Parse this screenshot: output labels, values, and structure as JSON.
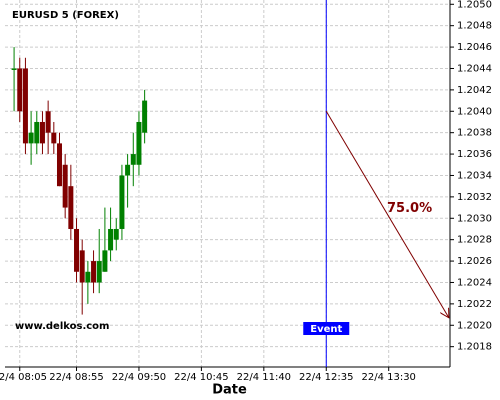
{
  "chart_data": {
    "type": "candlestick",
    "title": "EURUSD 5 (FOREX)",
    "x_label": "Date",
    "watermark": "www.delkos.com",
    "x": [
      0,
      5,
      10,
      15,
      20,
      25,
      30,
      35,
      40,
      45,
      50,
      55,
      60,
      65,
      70,
      75,
      80,
      85,
      90,
      95,
      100,
      105,
      110,
      115
    ],
    "open": [
      1.2044,
      1.2044,
      1.2044,
      1.2037,
      1.2037,
      1.2039,
      1.204,
      1.2038,
      1.2037,
      1.2035,
      1.2033,
      1.2029,
      1.2027,
      1.2024,
      1.2026,
      1.2024,
      1.2025,
      1.2027,
      1.2028,
      1.2029,
      1.2034,
      1.2035,
      1.2035,
      1.2038
    ],
    "high": [
      1.2046,
      1.2045,
      1.2045,
      1.204,
      1.204,
      1.204,
      1.2041,
      1.2039,
      1.2038,
      1.2036,
      1.2035,
      1.203,
      1.2028,
      1.2026,
      1.2027,
      1.2029,
      1.2031,
      1.2031,
      1.203,
      1.2035,
      1.2036,
      1.2038,
      1.204,
      1.2042
    ],
    "low": [
      1.204,
      1.2039,
      1.2036,
      1.2035,
      1.2036,
      1.2036,
      1.2036,
      1.2036,
      1.2033,
      1.203,
      1.2028,
      1.2024,
      1.2021,
      1.2022,
      1.2023,
      1.2023,
      1.2025,
      1.2026,
      1.2027,
      1.2028,
      1.2031,
      1.2033,
      1.2034,
      1.2037
    ],
    "close": [
      1.2044,
      1.204,
      1.2037,
      1.2038,
      1.2039,
      1.2037,
      1.2038,
      1.2037,
      1.2033,
      1.2031,
      1.2029,
      1.2025,
      1.2024,
      1.2025,
      1.2024,
      1.2026,
      1.2027,
      1.2029,
      1.2029,
      1.2034,
      1.2035,
      1.2036,
      1.2039,
      1.2041
    ],
    "up_color": "#008000",
    "down_color": "#800000",
    "xlim": [
      -8,
      384
    ],
    "xticks": [
      {
        "value": 5,
        "label": "22/4 08:05"
      },
      {
        "value": 55,
        "label": "22/4 08:55"
      },
      {
        "value": 110,
        "label": "22/4 09:50"
      },
      {
        "value": 165,
        "label": "22/4 10:45"
      },
      {
        "value": 220,
        "label": "22/4 11:40"
      },
      {
        "value": 275,
        "label": "22/4 12:35"
      },
      {
        "value": 330,
        "label": "22/4 13:30"
      }
    ],
    "ylim": [
      1.20161,
      1.20504
    ],
    "yticks": [
      1.2018,
      {
        "value": 1.202,
        "label": "1.2020"
      },
      1.2022,
      1.2024,
      1.2026,
      1.2028,
      {
        "value": 1.203,
        "label": "1.2030"
      },
      1.2032,
      1.2034,
      1.2036,
      1.2038,
      {
        "value": 1.204,
        "label": "1.2040"
      },
      1.2042,
      1.2044,
      1.2046,
      1.2048,
      {
        "value": 1.205,
        "label": "1.2050"
      }
    ],
    "grid": true,
    "event": {
      "x": 275,
      "label": "Event",
      "color": "#0000ff"
    },
    "forecast": {
      "x0": 275,
      "y0": 1.204,
      "x1": 383,
      "y1": 1.20207,
      "label": "75.0%",
      "color": "#800000"
    }
  }
}
